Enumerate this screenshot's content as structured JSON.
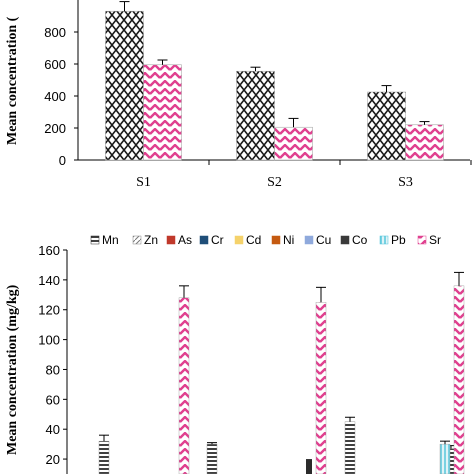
{
  "chart_data": [
    {
      "type": "bar",
      "ylabel": "Mean concentration (",
      "categories": [
        "S1",
        "S2",
        "S3"
      ],
      "ylim": [
        0,
        1000
      ],
      "yticks": [
        0,
        200,
        400,
        600,
        800
      ],
      "grid": false,
      "series": [
        {
          "values": [
            930,
            555,
            425
          ],
          "errors": [
            60,
            25,
            40
          ],
          "color": "#2b2b2b",
          "pattern": "diamond-lattice"
        },
        {
          "values": [
            595,
            205,
            220
          ],
          "errors": [
            30,
            55,
            20
          ],
          "color": "#e0408f",
          "pattern": "zigzag"
        }
      ]
    },
    {
      "type": "bar",
      "ylabel": "Mean concentration (mg/kg)",
      "ylim": [
        0,
        160
      ],
      "yticks": [
        20,
        40,
        60,
        80,
        100,
        120,
        140,
        160
      ],
      "grid": false,
      "legend_position": "top",
      "series": [
        {
          "name": "Mn",
          "color": "#2b2b2b",
          "pattern": "horizontal-lines",
          "values": [
            32,
            30,
            45,
            27
          ],
          "errors": [
            4,
            1,
            3,
            2
          ]
        },
        {
          "name": "Zn",
          "color": "#888888",
          "pattern": "diagonal",
          "values": [],
          "errors": []
        },
        {
          "name": "As",
          "color": "#c0392b",
          "pattern": "solid",
          "values": [],
          "errors": []
        },
        {
          "name": "Cr",
          "color": "#1f4e79",
          "pattern": "solid",
          "values": [],
          "errors": []
        },
        {
          "name": "Cd",
          "color": "#f5d26b",
          "pattern": "solid",
          "values": [],
          "errors": []
        },
        {
          "name": "Ni",
          "color": "#c55a11",
          "pattern": "solid",
          "values": [],
          "errors": []
        },
        {
          "name": "Cu",
          "color": "#8fa9dc",
          "pattern": "solid",
          "values": [],
          "errors": []
        },
        {
          "name": "Co",
          "color": "#3a3a3a",
          "pattern": "solid",
          "values": [],
          "errors": []
        },
        {
          "name": "Pb",
          "color": "#4cc3d9",
          "pattern": "vertical-lines",
          "values": [
            30
          ],
          "errors": [
            2
          ]
        },
        {
          "name": "Sr",
          "color": "#e0408f",
          "pattern": "zigzag",
          "values": [
            128,
            125,
            136
          ],
          "errors": [
            8,
            10,
            9
          ]
        }
      ]
    }
  ]
}
